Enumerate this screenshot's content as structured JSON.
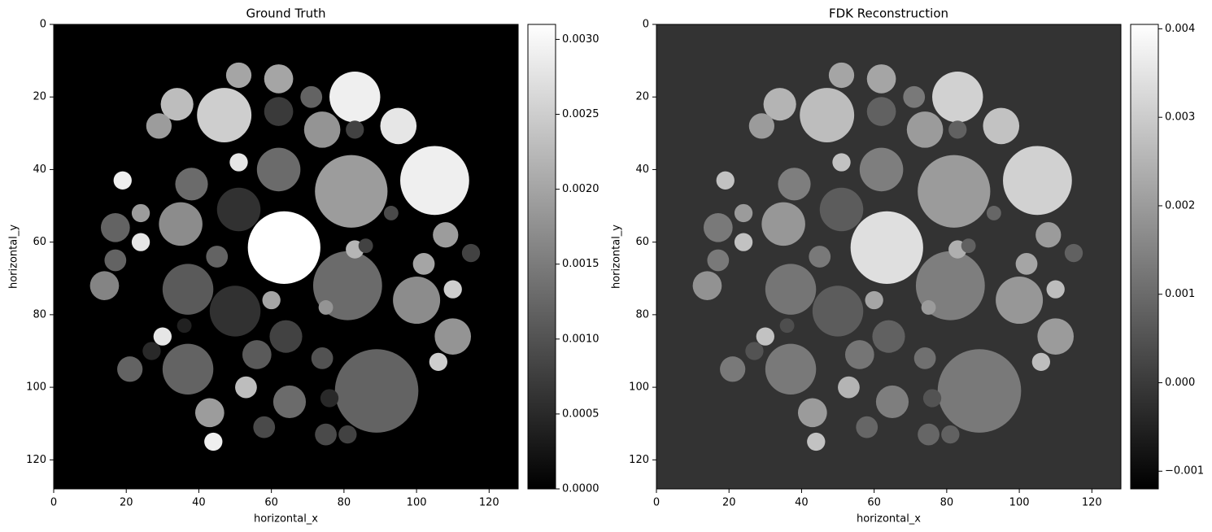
{
  "chart_data": [
    {
      "type": "image",
      "title": "Ground Truth",
      "xlabel": "horizontal_x",
      "ylabel": "horizontal_y",
      "cmap": "gray",
      "xlim": [
        0,
        128
      ],
      "ylim": [
        128,
        0
      ],
      "xticks": [
        0,
        20,
        40,
        60,
        80,
        100,
        120
      ],
      "yticks": [
        0,
        20,
        40,
        60,
        80,
        100,
        120
      ],
      "background": 0,
      "circles": [
        {
          "x": 63.5,
          "y": 61.5,
          "r": 10,
          "value": 0.0031
        },
        {
          "x": 83,
          "y": 20,
          "r": 7,
          "value": 0.0029
        },
        {
          "x": 105,
          "y": 43,
          "r": 9.5,
          "value": 0.0029
        },
        {
          "x": 95,
          "y": 28,
          "r": 5,
          "value": 0.0028
        },
        {
          "x": 47,
          "y": 25,
          "r": 7.5,
          "value": 0.0025
        },
        {
          "x": 34,
          "y": 22,
          "r": 4.5,
          "value": 0.0023
        },
        {
          "x": 51,
          "y": 14,
          "r": 3.5,
          "value": 0.002
        },
        {
          "x": 62,
          "y": 15,
          "r": 4,
          "value": 0.002
        },
        {
          "x": 62,
          "y": 24,
          "r": 4,
          "value": 0.0007
        },
        {
          "x": 71,
          "y": 20,
          "r": 3,
          "value": 0.0012
        },
        {
          "x": 74,
          "y": 29,
          "r": 5,
          "value": 0.0018
        },
        {
          "x": 83,
          "y": 29,
          "r": 2.5,
          "value": 0.0008
        },
        {
          "x": 29,
          "y": 28,
          "r": 3.5,
          "value": 0.0019
        },
        {
          "x": 82,
          "y": 46,
          "r": 10,
          "value": 0.0019
        },
        {
          "x": 62,
          "y": 40,
          "r": 6,
          "value": 0.0013
        },
        {
          "x": 38,
          "y": 44,
          "r": 4.5,
          "value": 0.0013
        },
        {
          "x": 51,
          "y": 51,
          "r": 6,
          "value": 0.0006
        },
        {
          "x": 35,
          "y": 55,
          "r": 6,
          "value": 0.0017
        },
        {
          "x": 19,
          "y": 43,
          "r": 2.5,
          "value": 0.0029
        },
        {
          "x": 51,
          "y": 38,
          "r": 2.5,
          "value": 0.0028
        },
        {
          "x": 81,
          "y": 72,
          "r": 9.5,
          "value": 0.0013
        },
        {
          "x": 100,
          "y": 76,
          "r": 6.5,
          "value": 0.0017
        },
        {
          "x": 37,
          "y": 73,
          "r": 7,
          "value": 0.0011
        },
        {
          "x": 50,
          "y": 79,
          "r": 7,
          "value": 0.0006
        },
        {
          "x": 37,
          "y": 95,
          "r": 7,
          "value": 0.0012
        },
        {
          "x": 89,
          "y": 101,
          "r": 11.5,
          "value": 0.0012
        },
        {
          "x": 110,
          "y": 86,
          "r": 5,
          "value": 0.0018
        },
        {
          "x": 108,
          "y": 58,
          "r": 3.5,
          "value": 0.0019
        },
        {
          "x": 14,
          "y": 72,
          "r": 4,
          "value": 0.0016
        },
        {
          "x": 43,
          "y": 107,
          "r": 4,
          "value": 0.0019
        },
        {
          "x": 44,
          "y": 115,
          "r": 2.5,
          "value": 0.0029
        },
        {
          "x": 65,
          "y": 104,
          "r": 4.5,
          "value": 0.0013
        },
        {
          "x": 21,
          "y": 95,
          "r": 3.5,
          "value": 0.0012
        },
        {
          "x": 30,
          "y": 86,
          "r": 2.5,
          "value": 0.0028
        },
        {
          "x": 56,
          "y": 91,
          "r": 4,
          "value": 0.0011
        },
        {
          "x": 64,
          "y": 86,
          "r": 4.5,
          "value": 0.0008
        },
        {
          "x": 74,
          "y": 92,
          "r": 3,
          "value": 0.001
        },
        {
          "x": 106,
          "y": 93,
          "r": 2.5,
          "value": 0.0025
        },
        {
          "x": 53,
          "y": 100,
          "r": 3,
          "value": 0.0023
        },
        {
          "x": 60,
          "y": 76,
          "r": 2.5,
          "value": 0.002
        },
        {
          "x": 83,
          "y": 62,
          "r": 2.5,
          "value": 0.0022
        },
        {
          "x": 102,
          "y": 66,
          "r": 3,
          "value": 0.002
        },
        {
          "x": 24,
          "y": 60,
          "r": 2.5,
          "value": 0.0028
        },
        {
          "x": 17,
          "y": 65,
          "r": 3,
          "value": 0.0012
        },
        {
          "x": 17,
          "y": 56,
          "r": 4,
          "value": 0.0012
        },
        {
          "x": 24,
          "y": 52,
          "r": 2.5,
          "value": 0.0019
        },
        {
          "x": 110,
          "y": 73,
          "r": 2.5,
          "value": 0.0025
        },
        {
          "x": 115,
          "y": 63,
          "r": 2.5,
          "value": 0.0008
        },
        {
          "x": 76,
          "y": 103,
          "r": 2.5,
          "value": 0.0005
        },
        {
          "x": 75,
          "y": 113,
          "r": 3,
          "value": 0.0009
        },
        {
          "x": 58,
          "y": 111,
          "r": 3,
          "value": 0.0009
        },
        {
          "x": 81,
          "y": 113,
          "r": 2.5,
          "value": 0.0008
        },
        {
          "x": 93,
          "y": 52,
          "r": 2,
          "value": 0.0009
        },
        {
          "x": 36,
          "y": 83,
          "r": 2,
          "value": 0.0004
        },
        {
          "x": 27,
          "y": 90,
          "r": 2.5,
          "value": 0.0005
        },
        {
          "x": 75,
          "y": 78,
          "r": 2,
          "value": 0.0018
        },
        {
          "x": 86,
          "y": 61,
          "r": 2,
          "value": 0.0008
        },
        {
          "x": 45,
          "y": 64,
          "r": 3,
          "value": 0.0012
        }
      ],
      "colorbar": {
        "vlim": [
          0,
          0.0031
        ],
        "ticks": [
          {
            "value": 0,
            "label": "0.0000"
          },
          0.0005,
          {
            "value": 0.001,
            "label": "0.0010"
          },
          0.0015,
          {
            "value": 0.002,
            "label": "0.0020"
          },
          0.0025,
          {
            "value": 0.003,
            "label": "0.0030"
          }
        ]
      }
    },
    {
      "type": "image",
      "title": "FDK Reconstruction",
      "xlabel": "horizontal_x",
      "ylabel": "horizontal_y",
      "cmap": "gray",
      "xlim": [
        0,
        128
      ],
      "ylim": [
        128,
        0
      ],
      "xticks": [
        0,
        20,
        40,
        60,
        80,
        100,
        120
      ],
      "yticks": [
        0,
        20,
        40,
        60,
        80,
        100,
        120
      ],
      "background": -0.00015,
      "circles": [
        {
          "x": 63.5,
          "y": 61.5,
          "r": 10,
          "value": 0.0034
        },
        {
          "x": 83,
          "y": 20,
          "r": 7,
          "value": 0.0031
        },
        {
          "x": 105,
          "y": 43,
          "r": 9.5,
          "value": 0.0031
        },
        {
          "x": 95,
          "y": 28,
          "r": 5,
          "value": 0.0028
        },
        {
          "x": 47,
          "y": 25,
          "r": 7.5,
          "value": 0.0027
        },
        {
          "x": 34,
          "y": 22,
          "r": 4.5,
          "value": 0.0025
        },
        {
          "x": 51,
          "y": 14,
          "r": 3.5,
          "value": 0.0022
        },
        {
          "x": 62,
          "y": 15,
          "r": 4,
          "value": 0.0022
        },
        {
          "x": 62,
          "y": 24,
          "r": 4,
          "value": 0.0008
        },
        {
          "x": 71,
          "y": 20,
          "r": 3,
          "value": 0.0013
        },
        {
          "x": 74,
          "y": 29,
          "r": 5,
          "value": 0.002
        },
        {
          "x": 83,
          "y": 29,
          "r": 2.5,
          "value": 0.0008
        },
        {
          "x": 29,
          "y": 28,
          "r": 3.5,
          "value": 0.002
        },
        {
          "x": 82,
          "y": 46,
          "r": 10,
          "value": 0.002
        },
        {
          "x": 62,
          "y": 40,
          "r": 6,
          "value": 0.0014
        },
        {
          "x": 38,
          "y": 44,
          "r": 4.5,
          "value": 0.0014
        },
        {
          "x": 51,
          "y": 51,
          "r": 6,
          "value": 0.0007
        },
        {
          "x": 35,
          "y": 55,
          "r": 6,
          "value": 0.0019
        },
        {
          "x": 19,
          "y": 43,
          "r": 2.5,
          "value": 0.0028
        },
        {
          "x": 51,
          "y": 38,
          "r": 2.5,
          "value": 0.0028
        },
        {
          "x": 81,
          "y": 72,
          "r": 9.5,
          "value": 0.0014
        },
        {
          "x": 100,
          "y": 76,
          "r": 6.5,
          "value": 0.0019
        },
        {
          "x": 37,
          "y": 73,
          "r": 7,
          "value": 0.0012
        },
        {
          "x": 50,
          "y": 79,
          "r": 7,
          "value": 0.0007
        },
        {
          "x": 37,
          "y": 95,
          "r": 7,
          "value": 0.0013
        },
        {
          "x": 89,
          "y": 101,
          "r": 11.5,
          "value": 0.0013
        },
        {
          "x": 110,
          "y": 86,
          "r": 5,
          "value": 0.002
        },
        {
          "x": 108,
          "y": 58,
          "r": 3.5,
          "value": 0.002
        },
        {
          "x": 14,
          "y": 72,
          "r": 4,
          "value": 0.0018
        },
        {
          "x": 43,
          "y": 107,
          "r": 4,
          "value": 0.002
        },
        {
          "x": 44,
          "y": 115,
          "r": 2.5,
          "value": 0.0028
        },
        {
          "x": 65,
          "y": 104,
          "r": 4.5,
          "value": 0.0014
        },
        {
          "x": 21,
          "y": 95,
          "r": 3.5,
          "value": 0.0013
        },
        {
          "x": 30,
          "y": 86,
          "r": 2.5,
          "value": 0.0028
        },
        {
          "x": 56,
          "y": 91,
          "r": 4,
          "value": 0.0012
        },
        {
          "x": 64,
          "y": 86,
          "r": 4.5,
          "value": 0.0008
        },
        {
          "x": 74,
          "y": 92,
          "r": 3,
          "value": 0.0011
        },
        {
          "x": 106,
          "y": 93,
          "r": 2.5,
          "value": 0.0027
        },
        {
          "x": 53,
          "y": 100,
          "r": 3,
          "value": 0.0025
        },
        {
          "x": 60,
          "y": 76,
          "r": 2.5,
          "value": 0.0022
        },
        {
          "x": 83,
          "y": 62,
          "r": 2.5,
          "value": 0.0024
        },
        {
          "x": 102,
          "y": 66,
          "r": 3,
          "value": 0.0022
        },
        {
          "x": 24,
          "y": 60,
          "r": 2.5,
          "value": 0.0028
        },
        {
          "x": 17,
          "y": 65,
          "r": 3,
          "value": 0.0013
        },
        {
          "x": 17,
          "y": 56,
          "r": 4,
          "value": 0.0013
        },
        {
          "x": 24,
          "y": 52,
          "r": 2.5,
          "value": 0.002
        },
        {
          "x": 110,
          "y": 73,
          "r": 2.5,
          "value": 0.0027
        },
        {
          "x": 115,
          "y": 63,
          "r": 2.5,
          "value": 0.0008
        },
        {
          "x": 76,
          "y": 103,
          "r": 2.5,
          "value": 0.0005
        },
        {
          "x": 75,
          "y": 113,
          "r": 3,
          "value": 0.0009
        },
        {
          "x": 58,
          "y": 111,
          "r": 3,
          "value": 0.0009
        },
        {
          "x": 81,
          "y": 113,
          "r": 2.5,
          "value": 0.0008
        },
        {
          "x": 93,
          "y": 52,
          "r": 2,
          "value": 0.0009
        },
        {
          "x": 36,
          "y": 83,
          "r": 2,
          "value": 0.0004
        },
        {
          "x": 27,
          "y": 90,
          "r": 2.5,
          "value": 0.0005
        },
        {
          "x": 75,
          "y": 78,
          "r": 2,
          "value": 0.002
        },
        {
          "x": 86,
          "y": 61,
          "r": 2,
          "value": 0.0008
        },
        {
          "x": 45,
          "y": 64,
          "r": 3,
          "value": 0.0013
        }
      ],
      "colorbar": {
        "vlim": [
          -0.0012,
          0.00405
        ],
        "ticks": [
          {
            "value": -0.001,
            "label": "−0.001"
          },
          {
            "value": 0,
            "label": "0.000"
          },
          0.001,
          0.002,
          0.003,
          0.004
        ]
      }
    }
  ]
}
